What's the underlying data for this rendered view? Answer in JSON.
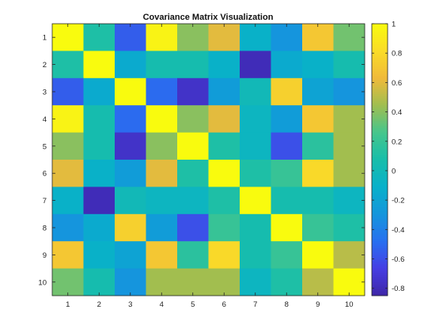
{
  "chart_data": {
    "type": "heatmap",
    "title": "Covariance Matrix Visualization",
    "x_categories": [
      "1",
      "2",
      "3",
      "4",
      "5",
      "6",
      "7",
      "8",
      "9",
      "10"
    ],
    "y_categories": [
      "1",
      "2",
      "3",
      "4",
      "5",
      "6",
      "7",
      "8",
      "9",
      "10"
    ],
    "values": [
      [
        1.0,
        0.1,
        -0.55,
        0.95,
        0.4,
        0.6,
        -0.1,
        -0.3,
        0.7,
        0.35
      ],
      [
        0.1,
        1.0,
        -0.15,
        0.05,
        0.05,
        -0.1,
        -0.8,
        -0.15,
        -0.1,
        0.05
      ],
      [
        -0.55,
        -0.15,
        1.0,
        -0.5,
        -0.75,
        -0.25,
        0.0,
        0.75,
        -0.2,
        -0.3
      ],
      [
        0.95,
        0.05,
        -0.5,
        1.0,
        0.4,
        0.6,
        -0.05,
        -0.25,
        0.7,
        0.45
      ],
      [
        0.4,
        0.05,
        -0.75,
        0.4,
        1.0,
        0.1,
        -0.05,
        -0.6,
        0.15,
        0.45
      ],
      [
        0.6,
        -0.1,
        -0.25,
        0.6,
        0.1,
        1.0,
        0.1,
        0.2,
        0.8,
        0.45
      ],
      [
        -0.1,
        -0.8,
        0.0,
        -0.05,
        -0.05,
        0.1,
        1.0,
        0.05,
        0.05,
        -0.05
      ],
      [
        -0.3,
        -0.15,
        0.75,
        -0.25,
        -0.6,
        0.2,
        0.05,
        1.0,
        0.2,
        0.1
      ],
      [
        0.7,
        -0.1,
        -0.2,
        0.7,
        0.15,
        0.8,
        0.05,
        0.2,
        1.0,
        0.5
      ],
      [
        0.35,
        0.05,
        -0.3,
        0.45,
        0.45,
        0.45,
        -0.05,
        0.1,
        0.5,
        1.0
      ]
    ],
    "colorbar": {
      "min": -0.85,
      "max": 1.0,
      "ticks": [
        1,
        0.8,
        0.6,
        0.4,
        0.2,
        0,
        -0.2,
        -0.4,
        -0.6,
        -0.8
      ],
      "tick_labels": [
        "1",
        "0.8",
        "0.6",
        "0.4",
        "0.2",
        "0",
        "-0.2",
        "-0.4",
        "-0.6",
        "-0.8"
      ]
    },
    "colormap": "parula",
    "grid": false
  }
}
